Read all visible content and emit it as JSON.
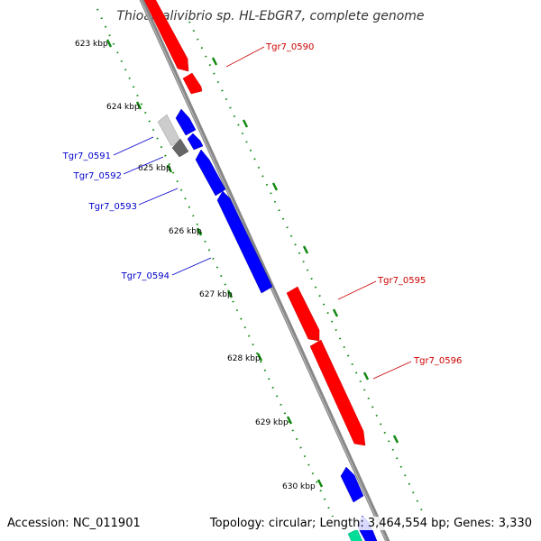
{
  "title": "Thioalkalivibrio sp. HL-EbGR7, complete genome",
  "accession": "Accession: NC_011901",
  "topology": "Topology: circular; Length: 3,464,554 bp; Genes: 3,330",
  "colors": {
    "forward": "#ff0000",
    "reverse": "#0000ff",
    "backbone": "#888888",
    "tick": "#118811",
    "other_light": "#cccccc",
    "other_dark": "#666666",
    "rna": "#00dd99"
  },
  "kbp_labels": [
    "623 kbp",
    "624 kbp",
    "625 kbp",
    "626 kbp",
    "627 kbp",
    "628 kbp",
    "629 kbp",
    "630 kbp"
  ],
  "gene_labels": {
    "forward": [
      "Tgr7_0590",
      "Tgr7_0595",
      "Tgr7_0596"
    ],
    "reverse": [
      "Tgr7_0591",
      "Tgr7_0592",
      "Tgr7_0593",
      "Tgr7_0594"
    ]
  }
}
